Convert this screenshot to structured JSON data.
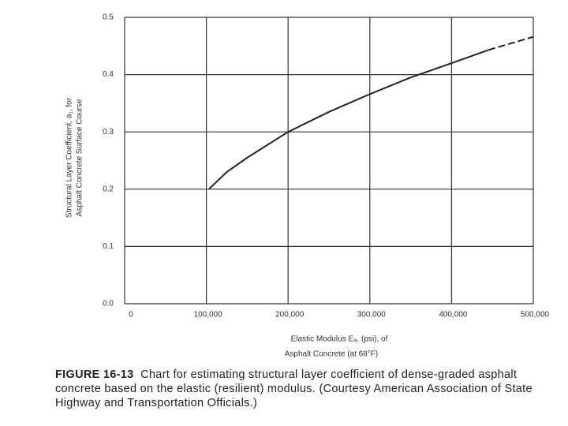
{
  "chart_data": {
    "type": "line",
    "x_label": [
      "Elastic Modulus  Eₐ꜀ (psi), of",
      "Asphalt Concrete (at 68°F)"
    ],
    "y_label": [
      "Structural Layer Coefficient, a₁, for",
      "Asphalt Concrete Surface Course"
    ],
    "figure_label": "FIGURE 16-13",
    "caption": "Chart for estimating structural layer coefficient of dense-graded asphalt concrete based on the elastic (resilient) modulus. (Courtesy American Association of State Highway and Transportation Officials.)",
    "xlim": [
      0,
      500000
    ],
    "xticks": [
      0,
      {
        "value": 100000,
        "label": "100,000"
      },
      {
        "value": 200000,
        "label": "200,000"
      },
      {
        "value": 300000,
        "label": "300,000"
      },
      {
        "value": 400000,
        "label": "400,000"
      },
      {
        "value": 500000,
        "label": "500,000"
      }
    ],
    "ylim": [
      0,
      0.5
    ],
    "yticks": [
      {
        "value": 0,
        "label": "0.0"
      },
      0.1,
      0.2,
      0.3,
      0.4,
      0.5
    ],
    "grid": true,
    "series": [
      {
        "color": "#222222",
        "dashed": false,
        "x": [
          103000,
          125000,
          150000,
          200000,
          250000,
          300000,
          350000,
          400000,
          445000
        ],
        "values": [
          0.2,
          0.23,
          0.255,
          0.3,
          0.335,
          0.366,
          0.395,
          0.42,
          0.443
        ]
      },
      {
        "color": "#222222",
        "dashed": true,
        "x": [
          445000,
          500000
        ],
        "values": [
          0.443,
          0.466
        ]
      }
    ]
  }
}
